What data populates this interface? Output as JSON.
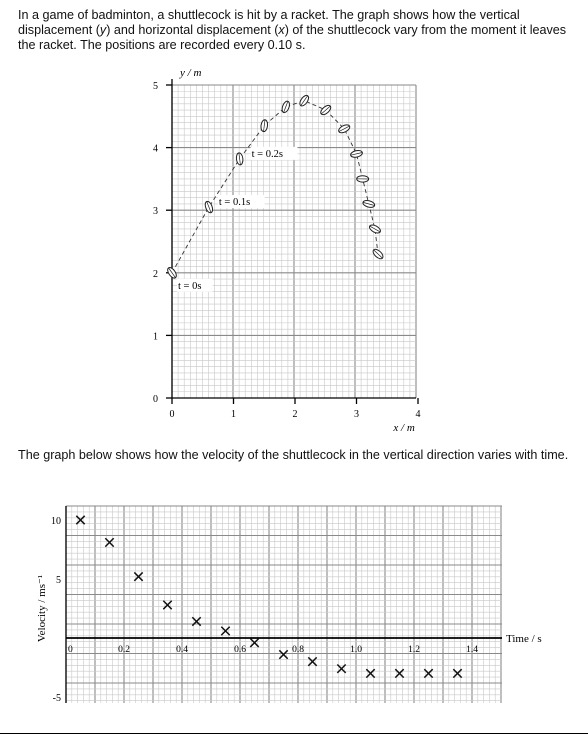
{
  "text": {
    "intro_1": "In a game of badminton, a shuttlecock is hit by a racket. The graph shows how the vertical displacement (",
    "intro_y": "y",
    "intro_2": ") and horizontal displacement (",
    "intro_x": "x",
    "intro_3": ") of the shuttlecock vary from the moment it leaves the racket. The positions are recorded every 0.10 s.",
    "between": "The graph below shows how the velocity of the shuttlecock in the vertical direction varies with time."
  },
  "chart_data": [
    {
      "type": "scatter",
      "title": "",
      "xlabel": "x / m",
      "ylabel": "y / m",
      "xlim": [
        0,
        4
      ],
      "ylim": [
        0,
        5
      ],
      "xticks": [
        "0",
        "1",
        "2",
        "3",
        "4"
      ],
      "yticks": [
        "0",
        "1",
        "2",
        "3",
        "4",
        "5"
      ],
      "grid": true,
      "series": [
        {
          "x": [
            0.0,
            0.6,
            1.1,
            1.5,
            1.85,
            2.15,
            2.5,
            2.8,
            3.0,
            3.1,
            3.2,
            3.3,
            3.35
          ],
          "y": [
            2.0,
            3.05,
            3.82,
            4.35,
            4.65,
            4.75,
            4.6,
            4.3,
            3.9,
            3.5,
            3.1,
            2.7,
            2.3
          ]
        }
      ],
      "dashed_path": true,
      "annotations": [
        {
          "text": "t = 0s",
          "x": 0.0,
          "y": 2.0
        },
        {
          "text": "t = 0.1s",
          "x": 0.6,
          "y": 3.05
        },
        {
          "text": "t = 0.2s",
          "x": 1.1,
          "y": 3.82
        }
      ]
    },
    {
      "type": "scatter",
      "title": "",
      "xlabel": "Time / s",
      "ylabel": "Velocity / ms⁻¹",
      "xlim": [
        0,
        1.5
      ],
      "ylim": [
        -6,
        10.5
      ],
      "xticks": [
        "0",
        "0.2",
        "0.4",
        "0.6",
        "0.8",
        "1.0",
        "1.2",
        "1.4"
      ],
      "yticks": [
        "10",
        "5",
        "-5"
      ],
      "grid": true,
      "series": [
        {
          "x": [
            0.05,
            0.15,
            0.25,
            0.35,
            0.45,
            0.55,
            0.65,
            0.75,
            0.85,
            0.95,
            1.05,
            1.15,
            1.25,
            1.35
          ],
          "y": [
            10.0,
            8.1,
            5.2,
            2.8,
            1.4,
            0.6,
            -0.4,
            -1.4,
            -2.0,
            -2.6,
            -3.0,
            -3.0,
            -3.0,
            -3.0
          ]
        }
      ],
      "marker": "x"
    }
  ]
}
